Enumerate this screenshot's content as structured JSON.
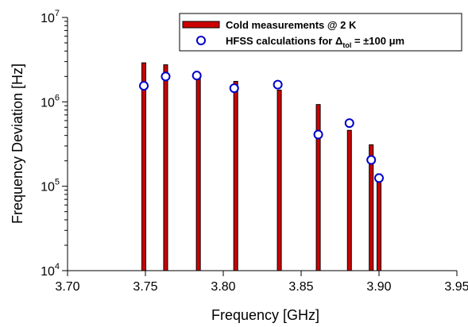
{
  "chart_data": {
    "type": "bar",
    "xlabel": "Frequency [GHz]",
    "ylabel": "Frequency Deviation [Hz]",
    "xlim": [
      3.7,
      3.95
    ],
    "ylim": [
      10000,
      10000000
    ],
    "yscale": "log",
    "grid": false,
    "legend_position": "top-right",
    "x_ticks": [
      "3.70",
      "3.75",
      "3.80",
      "3.85",
      "3.90",
      "3.95"
    ],
    "y_ticks": [
      {
        "base": "10",
        "exp": "4"
      },
      {
        "base": "10",
        "exp": "5"
      },
      {
        "base": "10",
        "exp": "6"
      },
      {
        "base": "10",
        "exp": "7"
      }
    ],
    "series": [
      {
        "name": "Cold measurements @ 2 K",
        "kind": "bar",
        "color": "#cc0000",
        "x": [
          3.749,
          3.763,
          3.784,
          3.808,
          3.836,
          3.861,
          3.881,
          3.895,
          3.9
        ],
        "values": [
          2900000,
          2750000,
          2050000,
          1750000,
          1380000,
          930000,
          460000,
          310000,
          140000
        ]
      },
      {
        "name_parts": [
          "HFSS calculations for Δ",
          "tol",
          " = ±100 μm"
        ],
        "kind": "scatter",
        "color": "#0000cc",
        "x": [
          3.749,
          3.763,
          3.783,
          3.807,
          3.835,
          3.861,
          3.881,
          3.895,
          3.9
        ],
        "values": [
          1550000,
          2000000,
          2050000,
          1450000,
          1600000,
          410000,
          560000,
          205000,
          125000
        ]
      }
    ]
  }
}
